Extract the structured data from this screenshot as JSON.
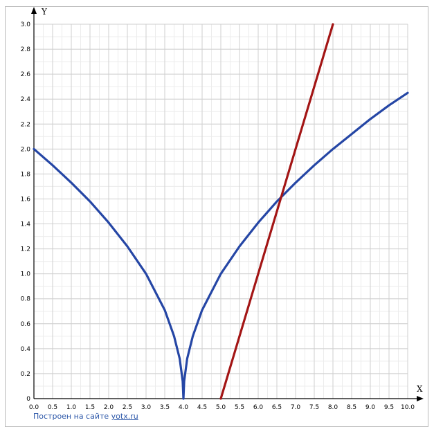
{
  "chart_data": {
    "type": "line",
    "title": "",
    "xlabel": "X",
    "ylabel": "Y",
    "xlim": [
      0,
      10
    ],
    "ylim": [
      0,
      3
    ],
    "grid": true,
    "legend": "none",
    "x_ticks": [
      "0.0",
      "0.5",
      "1.0",
      "1.5",
      "2.0",
      "2.5",
      "3.0",
      "3.5",
      "4.0",
      "4.5",
      "5.0",
      "5.5",
      "6.0",
      "6.5",
      "7.0",
      "7.5",
      "8.0",
      "8.5",
      "9.0",
      "9.5",
      "10.0"
    ],
    "y_ticks": [
      "0",
      "0.2",
      "0.4",
      "0.6",
      "0.8",
      "1.0",
      "1.2",
      "1.4",
      "1.6",
      "1.8",
      "2.0",
      "2.2",
      "2.4",
      "2.6",
      "2.8",
      "3.0"
    ],
    "series": [
      {
        "color": "#2546a5",
        "x": [
          0,
          0.5,
          1.0,
          1.5,
          2.0,
          2.5,
          3.0,
          3.5,
          3.75,
          3.9,
          3.98,
          4.0,
          4.02,
          4.1,
          4.25,
          4.5,
          5.0,
          5.5,
          6.0,
          6.5,
          7.0,
          7.5,
          8.0,
          8.5,
          9.0,
          9.5,
          10.0
        ],
        "y": [
          2.0,
          1.87,
          1.73,
          1.58,
          1.41,
          1.22,
          1.0,
          0.71,
          0.5,
          0.32,
          0.14,
          0.0,
          0.14,
          0.32,
          0.5,
          0.71,
          1.0,
          1.22,
          1.41,
          1.58,
          1.73,
          1.87,
          2.0,
          2.12,
          2.24,
          2.35,
          2.45
        ]
      },
      {
        "color": "#a31515",
        "x": [
          5.0,
          8.0
        ],
        "y": [
          0.0,
          3.0
        ]
      }
    ]
  },
  "credit": {
    "text": "Построен на сайте ",
    "link": "yotx.ru"
  }
}
